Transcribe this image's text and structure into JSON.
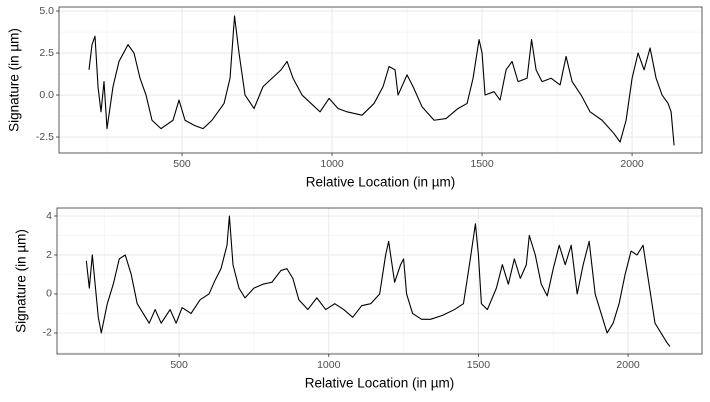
{
  "chart_data": [
    {
      "type": "line",
      "xlabel": "Relative Location (in µm)",
      "ylabel": "Signature (in µm)",
      "xlim": [
        90,
        2233
      ],
      "ylim": [
        -3.45,
        5.24
      ],
      "xticks": [
        500,
        1000,
        1500,
        2000
      ],
      "yticks": [
        {
          "value": -2.5,
          "label": "-2.5"
        },
        {
          "value": 0,
          "label": "0.0"
        },
        {
          "value": 2.5,
          "label": "2.5"
        },
        {
          "value": 5,
          "label": "5.0"
        }
      ],
      "minor_xticks": [
        250,
        750,
        1250,
        1750
      ],
      "minor_yticks": [
        -1.25,
        1.25,
        3.75
      ],
      "grid": true,
      "color": "#000000",
      "x": [
        190,
        200,
        210,
        220,
        230,
        240,
        250,
        270,
        290,
        320,
        340,
        360,
        380,
        400,
        430,
        470,
        490,
        510,
        540,
        570,
        600,
        640,
        660,
        675,
        690,
        710,
        740,
        770,
        800,
        830,
        850,
        870,
        900,
        930,
        960,
        990,
        1020,
        1050,
        1100,
        1140,
        1170,
        1190,
        1210,
        1220,
        1250,
        1270,
        1300,
        1340,
        1380,
        1420,
        1450,
        1470,
        1490,
        1500,
        1510,
        1540,
        1560,
        1580,
        1600,
        1620,
        1650,
        1665,
        1680,
        1700,
        1730,
        1760,
        1780,
        1800,
        1830,
        1860,
        1900,
        1940,
        1960,
        1980,
        2000,
        2020,
        2040,
        2060,
        2080,
        2100,
        2120,
        2130,
        2140
      ],
      "values": [
        1.5,
        3,
        3.5,
        0.5,
        -1,
        0.8,
        -2,
        0.5,
        2,
        3,
        2.5,
        1,
        0,
        -1.5,
        -2,
        -1.5,
        -0.3,
        -1.5,
        -1.8,
        -2,
        -1.5,
        -0.5,
        1,
        4.7,
        2.5,
        0,
        -0.8,
        0.5,
        1,
        1.5,
        2,
        1,
        0,
        -0.5,
        -1,
        -0.2,
        -0.8,
        -1,
        -1.2,
        -0.5,
        0.5,
        1.7,
        1.5,
        0,
        1.2,
        0.5,
        -0.7,
        -1.5,
        -1.4,
        -0.8,
        -0.5,
        1,
        3.3,
        2.5,
        0,
        0.2,
        -0.3,
        1.5,
        2,
        0.8,
        1,
        3.3,
        1.5,
        0.8,
        1,
        0.6,
        2.3,
        0.8,
        0,
        -1,
        -1.5,
        -2.3,
        -2.8,
        -1.5,
        1,
        2.5,
        1.5,
        2.8,
        1,
        0,
        -0.5,
        -1,
        -3
      ]
    },
    {
      "type": "line",
      "xlabel": "Relative Location (in µm)",
      "ylabel": "Signature (in µm)",
      "xlim": [
        92,
        2247
      ],
      "ylim": [
        -3.08,
        4.41
      ],
      "xticks": [
        500,
        1000,
        1500,
        2000
      ],
      "yticks": [
        -2,
        0,
        2,
        4
      ],
      "minor_xticks": [
        250,
        750,
        1250,
        1750
      ],
      "minor_yticks": [
        -3,
        -1,
        1,
        3
      ],
      "grid": true,
      "color": "#000000",
      "x": [
        190,
        200,
        210,
        230,
        240,
        260,
        280,
        300,
        320,
        340,
        360,
        380,
        400,
        420,
        440,
        470,
        490,
        510,
        540,
        570,
        600,
        620,
        640,
        660,
        668,
        680,
        700,
        720,
        750,
        780,
        810,
        840,
        860,
        880,
        900,
        930,
        960,
        990,
        1020,
        1050,
        1080,
        1110,
        1140,
        1170,
        1190,
        1200,
        1220,
        1240,
        1250,
        1260,
        1280,
        1310,
        1340,
        1380,
        1420,
        1450,
        1470,
        1490,
        1500,
        1510,
        1530,
        1560,
        1580,
        1600,
        1620,
        1640,
        1660,
        1670,
        1690,
        1710,
        1730,
        1750,
        1770,
        1790,
        1810,
        1830,
        1850,
        1870,
        1890,
        1910,
        1930,
        1950,
        1970,
        1990,
        2010,
        2030,
        2050,
        2070,
        2090,
        2110,
        2130,
        2140
      ],
      "values": [
        1.7,
        0.3,
        2,
        -1.2,
        -2,
        -0.5,
        0.5,
        1.8,
        2,
        1,
        -0.5,
        -1,
        -1.5,
        -0.8,
        -1.5,
        -0.8,
        -1.5,
        -0.7,
        -1,
        -0.3,
        0,
        0.7,
        1.3,
        2.5,
        4,
        1.5,
        0.3,
        -0.2,
        0.3,
        0.5,
        0.6,
        1.2,
        1.3,
        0.8,
        -0.3,
        -0.8,
        -0.2,
        -0.8,
        -0.5,
        -0.8,
        -1.2,
        -0.6,
        -0.5,
        0,
        2,
        2.7,
        0.6,
        1.5,
        1.8,
        0,
        -1,
        -1.3,
        -1.3,
        -1.1,
        -0.8,
        -0.5,
        1.5,
        3.6,
        2,
        -0.5,
        -0.8,
        0.3,
        1.5,
        0.5,
        1.8,
        0.8,
        1.5,
        3,
        2,
        0.5,
        -0.1,
        1.3,
        2.5,
        1.5,
        2.5,
        0,
        1.5,
        2.7,
        0,
        -1,
        -2,
        -1.5,
        -0.5,
        1,
        2.2,
        2,
        2.5,
        0.5,
        -1.5,
        -2,
        -2.5,
        -2.7
      ]
    }
  ]
}
